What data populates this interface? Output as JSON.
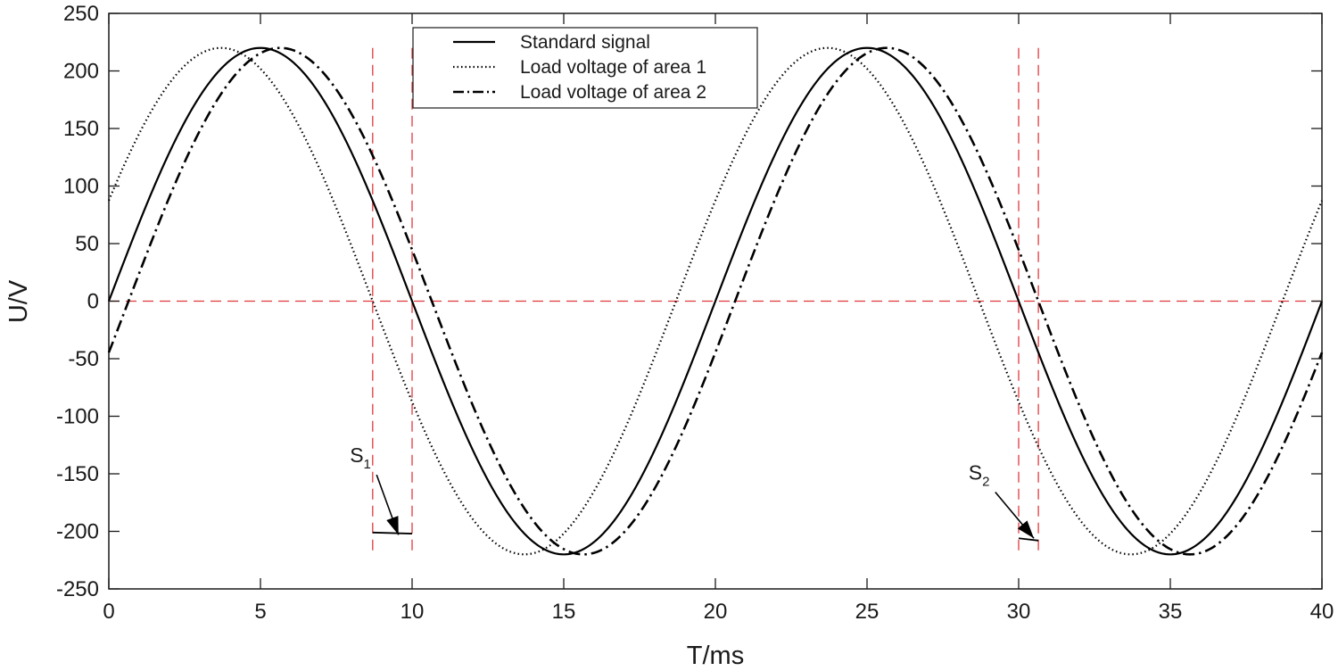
{
  "chart_data": {
    "type": "line",
    "title": "",
    "xlabel": "T/ms",
    "ylabel": "U/V",
    "xlim": [
      0,
      40
    ],
    "ylim": [
      -250,
      250
    ],
    "xticks": [
      0,
      5,
      10,
      15,
      20,
      25,
      30,
      35,
      40
    ],
    "yticks": [
      250,
      200,
      150,
      100,
      50,
      0,
      -50,
      -100,
      -150,
      -200,
      -250
    ],
    "xtick_labels": [
      "0",
      "5",
      "10",
      "15",
      "20",
      "25",
      "30",
      "35",
      "40"
    ],
    "ytick_labels": [
      "250",
      "200",
      "150",
      "100",
      "50",
      "0",
      "-50",
      "-100",
      "-150",
      "-200",
      "-250"
    ],
    "grid": false,
    "legend_position": "top-center",
    "series": [
      {
        "name": "Standard signal",
        "style": "solid",
        "amplitude": 220,
        "period_ms": 20,
        "zero_crossing_ms": 0,
        "peak_ms": [
          5,
          25
        ],
        "trough_ms": [
          15,
          35
        ]
      },
      {
        "name": "Load voltage of area 1",
        "style": "dotted",
        "amplitude": 220,
        "period_ms": 20,
        "zero_crossing_ms": -1.3,
        "peak_ms": [
          3.7,
          23.7
        ],
        "trough_ms": [
          13.7,
          33.7
        ]
      },
      {
        "name": "Load voltage of area 2",
        "style": "dashdot",
        "amplitude": 220,
        "period_ms": 20,
        "zero_crossing_ms": 0.65,
        "peak_ms": [
          5.65,
          25.65
        ],
        "trough_ms": [
          15.65,
          35.65
        ]
      }
    ],
    "reference_lines": {
      "color": "#e0393e",
      "horizontal_y": [
        0
      ],
      "vertical_x": [
        8.7,
        10,
        30,
        30.65
      ],
      "y_from": -220,
      "y_to": 220
    },
    "annotations": [
      {
        "label": "S",
        "subscript": "1",
        "x_from": 8.7,
        "x_to": 10.0,
        "y_from": -201,
        "y_to": -202,
        "text_x": 8.3,
        "text_y": -140,
        "arrow_to_x": 9.55,
        "arrow_to_y": -203
      },
      {
        "label": "S",
        "subscript": "2",
        "x_from": 30.0,
        "x_to": 30.65,
        "y_from": -206,
        "y_to": -208,
        "text_x": 28.7,
        "text_y": -155,
        "arrow_to_x": 30.5,
        "arrow_to_y": -206
      }
    ]
  },
  "styles": {
    "series_color": "#000000",
    "axis_color": "#1a1a1a",
    "reference_color": "#e0393e",
    "background": "#ffffff"
  }
}
